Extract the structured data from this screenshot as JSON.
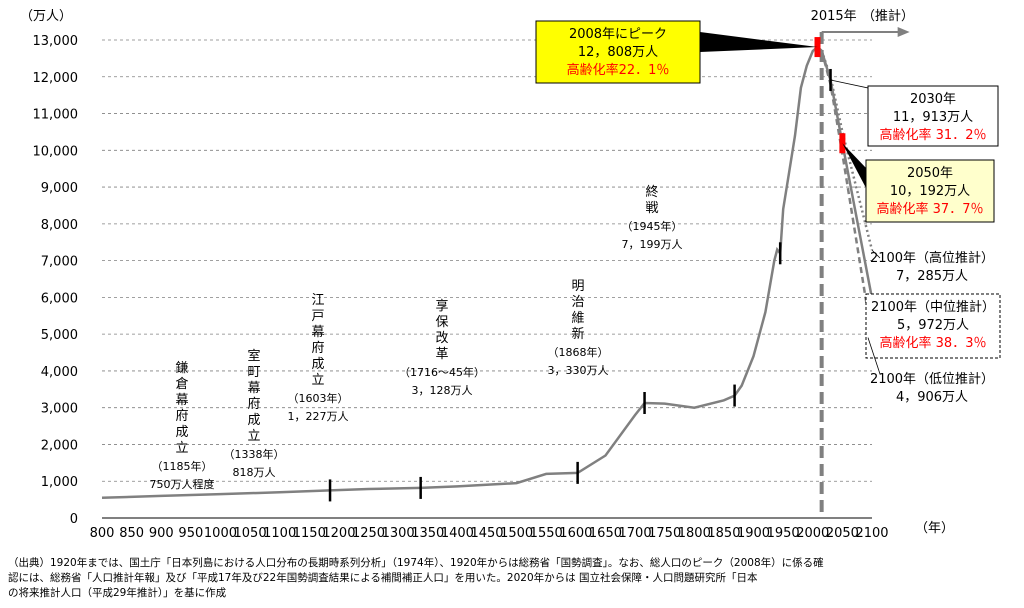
{
  "chart_data": {
    "type": "line",
    "y_unit": "（万人）",
    "x_unit": "（年）",
    "xlim": [
      800,
      2100
    ],
    "ylim": [
      0,
      13000
    ],
    "x_ticks": [
      800,
      850,
      900,
      950,
      1000,
      1050,
      1100,
      1150,
      1200,
      1250,
      1300,
      1350,
      1400,
      1450,
      1500,
      1550,
      1600,
      1650,
      1700,
      1750,
      1800,
      1850,
      1900,
      1950,
      2000,
      2050,
      2100
    ],
    "y_ticks": [
      0,
      1000,
      2000,
      3000,
      4000,
      5000,
      6000,
      7000,
      8000,
      9000,
      10000,
      11000,
      12000,
      13000
    ],
    "y_tick_labels": [
      "0",
      "1,000",
      "2,000",
      "3,000",
      "4,000",
      "5,000",
      "6,000",
      "7,000",
      "8,000",
      "9,000",
      "10,000",
      "11,000",
      "12,000",
      "13,000"
    ],
    "grid": "horizontal dashed",
    "historical": {
      "x": [
        800,
        900,
        1000,
        1100,
        1185,
        1250,
        1338,
        1400,
        1500,
        1550,
        1603,
        1650,
        1700,
        1716,
        1730,
        1750,
        1800,
        1850,
        1868,
        1880,
        1900,
        1920,
        1935,
        1940,
        1945,
        1950,
        1960,
        1970,
        1980,
        1990,
        2000,
        2008,
        2015
      ],
      "y": [
        550,
        600,
        650,
        700,
        750,
        790,
        818,
        860,
        950,
        1200,
        1227,
        1700,
        2800,
        3128,
        3120,
        3110,
        3000,
        3200,
        3330,
        3600,
        4400,
        5600,
        7000,
        7300,
        7199,
        8400,
        9400,
        10400,
        11700,
        12300,
        12700,
        12808,
        12710
      ]
    },
    "projections": [
      {
        "x": [
          2015,
          2030,
          2050,
          2100
        ],
        "y": [
          12710,
          11913,
          10192,
          5972
        ],
        "style": "solid"
      },
      {
        "x": [
          2015,
          2030,
          2050,
          2100
        ],
        "y": [
          12710,
          12000,
          10500,
          7285
        ],
        "style": "dotted"
      },
      {
        "x": [
          2015,
          2030,
          2050,
          2100
        ],
        "y": [
          12710,
          11800,
          9900,
          4906
        ],
        "style": "dashed"
      }
    ],
    "markers": [
      {
        "x": 1185,
        "y": 750
      },
      {
        "x": 1338,
        "y": 818
      },
      {
        "x": 1603,
        "y": 1227
      },
      {
        "x": 1716,
        "y": 3128
      },
      {
        "x": 1868,
        "y": 3330
      },
      {
        "x": 1945,
        "y": 7199
      },
      {
        "x": 2030,
        "y": 11913
      }
    ],
    "red_markers": [
      {
        "x": 2008,
        "y": 12808
      },
      {
        "x": 2050,
        "y": 10192
      }
    ],
    "vertical_line_x": 2015,
    "labels": {
      "kamakura": [
        "鎌",
        "倉",
        "幕",
        "府",
        "成",
        "立"
      ],
      "kamakura_year": "（1185年）",
      "kamakura_pop": "750万人程度",
      "muromachi": [
        "室",
        "町",
        "幕",
        "府",
        "成",
        "立"
      ],
      "muromachi_year": "（1338年）",
      "muromachi_pop": "818万人",
      "edo": [
        "江",
        "戸",
        "幕",
        "府",
        "成",
        "立"
      ],
      "edo_year": "（1603年）",
      "edo_pop": "1，227万人",
      "kyoho": [
        "享",
        "保",
        "改",
        "革"
      ],
      "kyoho_year": "（1716～45年）",
      "kyoho_pop": "3，128万人",
      "meiji": [
        "明",
        "治",
        "維",
        "新"
      ],
      "meiji_year": "（1868年）",
      "meiji_pop": "3，330万人",
      "shusen": [
        "終",
        "戦"
      ],
      "shusen_year": "（1945年）",
      "shusen_pop": "7，199万人",
      "peak_title": "2008年にピーク",
      "peak_pop": "12，808万人",
      "peak_aging": "高齢化率22．1％",
      "year2015": "2015年",
      "suikei": "（推計）",
      "y2030_year": "2030年",
      "y2030_pop": "11，913万人",
      "y2030_aging": "高齢化率 31．2％",
      "y2050_year": "2050年",
      "y2050_pop": "10，192万人",
      "y2050_aging": "高齢化率 37．7％",
      "high_year": "2100年（高位推計）",
      "high_pop": "7，285万人",
      "mid_year": "2100年（中位推計）",
      "mid_pop": "5，972万人",
      "mid_aging": "高齢化率 38．3％",
      "low_year": "2100年（低位推計）",
      "low_pop": "4，906万人"
    }
  },
  "source_lines": [
    "（出典）1920年までは、国土庁「日本列島における人口分布の長期時系列分析」（1974年）、1920年からは総務省「国勢調査」。なお、総人口のピーク（2008年）に係る確",
    "認には、総務省「人口推計年報」及び「平成17年及び22年国勢調査結果による補間補正人口」を用いた。2020年からは 国立社会保障・人口問題研究所「日本",
    "の将来推計人口（平成29年推計）」を基に作成"
  ],
  "colors": {
    "line": "#808080",
    "grid": "#808080",
    "highlight_fill": "#ffff00",
    "highlight_fill_light": "#ffffcc",
    "red": "#ff0000"
  }
}
